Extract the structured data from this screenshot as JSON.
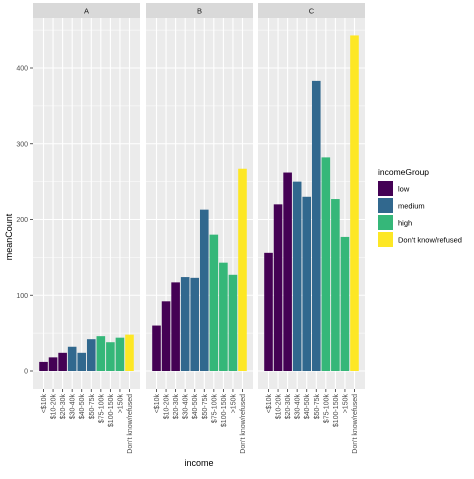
{
  "chart_data": {
    "type": "bar",
    "facet_var": "facet",
    "facets": [
      "A",
      "B",
      "C"
    ],
    "categories": [
      "<$10k",
      "$10-20k",
      "$20-30k",
      "$30-40k",
      "$40-50k",
      "$50-75k",
      "$75-100k",
      "$100-150k",
      ">150k",
      "Don't know/refused"
    ],
    "category_groups": [
      "low",
      "low",
      "low",
      "medium",
      "medium",
      "medium",
      "high",
      "high",
      "high",
      "Don't know/refused"
    ],
    "series": [
      {
        "name": "A",
        "values": [
          12,
          18,
          24,
          32,
          24,
          42,
          46,
          38,
          44,
          48
        ]
      },
      {
        "name": "B",
        "values": [
          60,
          92,
          117,
          124,
          123,
          213,
          180,
          143,
          127,
          267
        ]
      },
      {
        "name": "C",
        "values": [
          156,
          220,
          262,
          250,
          230,
          383,
          282,
          227,
          177,
          443
        ]
      }
    ],
    "xlabel": "income",
    "ylabel": "meanCount",
    "ylim": [
      0,
      460
    ],
    "yticks": [
      0,
      100,
      200,
      300,
      400
    ],
    "grid": true,
    "legend": {
      "title": "incomeGroup",
      "position": "right",
      "entries": [
        "low",
        "medium",
        "high",
        "Don't know/refused"
      ]
    },
    "colors": {
      "low": "#440154",
      "medium": "#31688e",
      "high": "#35b779",
      "Don't know/refused": "#fde725",
      "panel_bg": "#ebebeb",
      "strip_bg": "#d9d9d9",
      "grid": "#ffffff"
    }
  }
}
